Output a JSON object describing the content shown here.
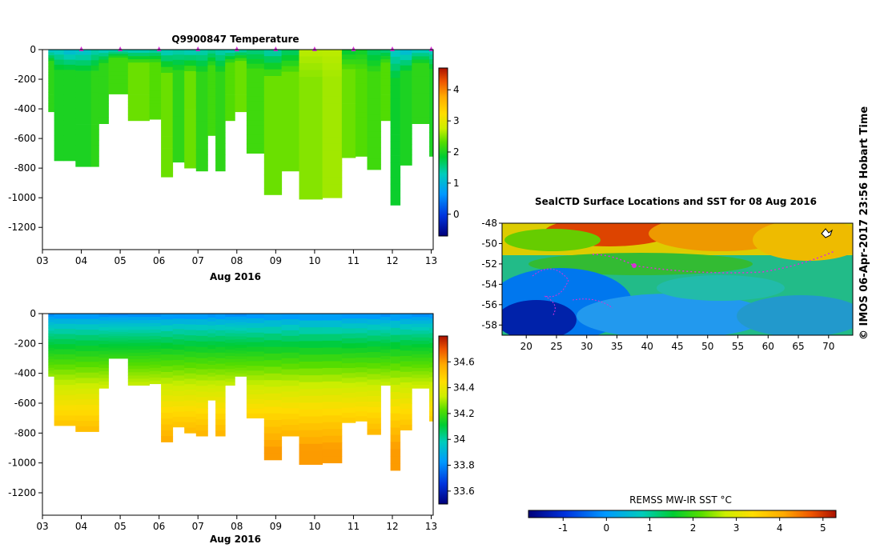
{
  "chart_data": [
    {
      "type": "heatmap",
      "title": "Q9900847  Temperature",
      "xlabel": "Aug 2016",
      "x_ticks": [
        "03",
        "04",
        "05",
        "06",
        "07",
        "08",
        "09",
        "10",
        "11",
        "12",
        "13"
      ],
      "x_range": [
        3,
        13.05
      ],
      "y_ticks": [
        0,
        -200,
        -400,
        -600,
        -800,
        -1000,
        -1200
      ],
      "ylim": [
        -1350,
        0
      ],
      "profile_markers": [
        4,
        5,
        6,
        7,
        8,
        9,
        10,
        11,
        12,
        13
      ],
      "colorbar": {
        "ticks": [
          0,
          1,
          2,
          3,
          4
        ],
        "range": [
          -0.7,
          4.7
        ]
      },
      "profiles": [
        {
          "x0": 3.15,
          "x1": 3.3,
          "depth": 420,
          "surface": 1.1,
          "deep": 2.1
        },
        {
          "x0": 3.3,
          "x1": 3.55,
          "depth": 750,
          "surface": 1.2,
          "deep": 2.0
        },
        {
          "x0": 3.55,
          "x1": 3.85,
          "depth": 750,
          "surface": 1.0,
          "deep": 2.0
        },
        {
          "x0": 3.85,
          "x1": 4.25,
          "depth": 790,
          "surface": 1.1,
          "deep": 2.0
        },
        {
          "x0": 4.25,
          "x1": 4.45,
          "depth": 790,
          "surface": 1.3,
          "deep": 2.1
        },
        {
          "x0": 4.45,
          "x1": 4.7,
          "depth": 500,
          "surface": 1.2,
          "deep": 2.1
        },
        {
          "x0": 4.7,
          "x1": 5.2,
          "depth": 300,
          "surface": 1.2,
          "deep": 2.2
        },
        {
          "x0": 5.2,
          "x1": 5.75,
          "depth": 480,
          "surface": 1.2,
          "deep": 2.4
        },
        {
          "x0": 5.75,
          "x1": 6.05,
          "depth": 470,
          "surface": 1.3,
          "deep": 2.3
        },
        {
          "x0": 6.05,
          "x1": 6.35,
          "depth": 860,
          "surface": 1.2,
          "deep": 2.4
        },
        {
          "x0": 6.35,
          "x1": 6.65,
          "depth": 760,
          "surface": 1.3,
          "deep": 2.1
        },
        {
          "x0": 6.65,
          "x1": 6.95,
          "depth": 800,
          "surface": 1.2,
          "deep": 2.4
        },
        {
          "x0": 6.95,
          "x1": 7.25,
          "depth": 820,
          "surface": 1.3,
          "deep": 2.1
        },
        {
          "x0": 7.25,
          "x1": 7.45,
          "depth": 580,
          "surface": 1.4,
          "deep": 2.2
        },
        {
          "x0": 7.45,
          "x1": 7.7,
          "depth": 820,
          "surface": 1.3,
          "deep": 2.1
        },
        {
          "x0": 7.7,
          "x1": 7.95,
          "depth": 480,
          "surface": 1.2,
          "deep": 2.3
        },
        {
          "x0": 7.95,
          "x1": 8.25,
          "depth": 420,
          "surface": 1.3,
          "deep": 2.4
        },
        {
          "x0": 8.25,
          "x1": 8.7,
          "depth": 700,
          "surface": 1.5,
          "deep": 2.2
        },
        {
          "x0": 8.7,
          "x1": 9.15,
          "depth": 980,
          "surface": 1.3,
          "deep": 2.4
        },
        {
          "x0": 9.15,
          "x1": 9.6,
          "depth": 820,
          "surface": 1.6,
          "deep": 2.4
        },
        {
          "x0": 9.6,
          "x1": 10.2,
          "depth": 1010,
          "surface": 2.7,
          "deep": 2.5
        },
        {
          "x0": 10.2,
          "x1": 10.7,
          "depth": 1000,
          "surface": 2.7,
          "deep": 2.6
        },
        {
          "x0": 10.7,
          "x1": 11.05,
          "depth": 730,
          "surface": 1.8,
          "deep": 2.4
        },
        {
          "x0": 11.05,
          "x1": 11.35,
          "depth": 720,
          "surface": 1.9,
          "deep": 2.3
        },
        {
          "x0": 11.35,
          "x1": 11.7,
          "depth": 810,
          "surface": 1.6,
          "deep": 2.2
        },
        {
          "x0": 11.7,
          "x1": 11.95,
          "depth": 480,
          "surface": 1.5,
          "deep": 2.3
        },
        {
          "x0": 11.95,
          "x1": 12.2,
          "depth": 1050,
          "surface": 1.2,
          "deep": 1.9
        },
        {
          "x0": 12.2,
          "x1": 12.5,
          "depth": 780,
          "surface": 1.0,
          "deep": 2.0
        },
        {
          "x0": 12.5,
          "x1": 12.95,
          "depth": 500,
          "surface": 1.2,
          "deep": 2.1
        },
        {
          "x0": 12.95,
          "x1": 13.05,
          "depth": 720,
          "surface": 1.2,
          "deep": 2.0
        }
      ]
    },
    {
      "type": "heatmap",
      "title": "",
      "xlabel": "Aug 2016",
      "x_ticks": [
        "03",
        "04",
        "05",
        "06",
        "07",
        "08",
        "09",
        "10",
        "11",
        "12",
        "13"
      ],
      "x_range": [
        3,
        13.05
      ],
      "y_ticks": [
        0,
        -200,
        -400,
        -600,
        -800,
        -1000,
        -1200
      ],
      "ylim": [
        -1350,
        0
      ],
      "colorbar": {
        "ticks": [
          33.6,
          33.8,
          34,
          34.2,
          34.4,
          34.6
        ],
        "tick_labels": [
          "33.6",
          "33.8",
          "34",
          "34.2",
          "34.4",
          "34.6"
        ],
        "range": [
          33.5,
          34.8
        ]
      },
      "profiles": "same as temperature section"
    },
    {
      "type": "heatmap",
      "title": "SealCTD Surface Locations and SST for 08 Aug 2016",
      "x_ticks": [
        20,
        25,
        30,
        35,
        40,
        45,
        50,
        55,
        60,
        65,
        70
      ],
      "x_range": [
        16,
        74
      ],
      "y_ticks": [
        -48,
        -50,
        -52,
        -54,
        -56,
        -58
      ],
      "y_tick_labels": [
        "-48",
        "-50",
        "-52",
        "-54",
        "-56",
        "-58"
      ],
      "ylim": [
        -59,
        -48
      ],
      "colorbar_label": "REMSS MW-IR SST °C",
      "colorbar": {
        "ticks": [
          -1,
          0,
          1,
          2,
          3,
          4,
          5
        ],
        "range": [
          -1.8,
          5.3
        ]
      },
      "side_note": "© IMOS 06-Apr-2017 23:56 Hobart Time"
    }
  ],
  "colors": {
    "marker": "#d832d8",
    "track": "#d832d8"
  }
}
